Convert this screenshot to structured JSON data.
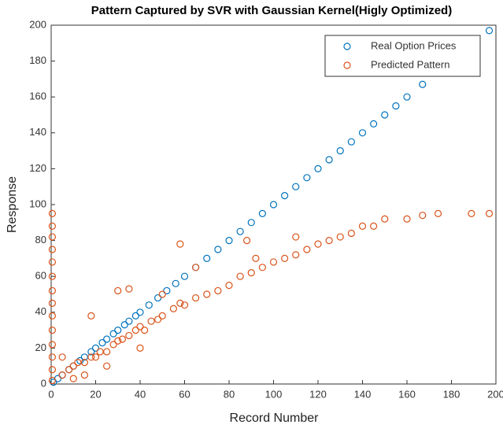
{
  "chart_data": {
    "type": "scatter",
    "title": "Pattern Captured by SVR with Gaussian Kernel(Higly Optimized)",
    "xlabel": "Record Number",
    "ylabel": "Response",
    "xlim": [
      0,
      200
    ],
    "xticks": [
      0,
      20,
      40,
      60,
      80,
      100,
      120,
      140,
      160,
      180,
      200
    ],
    "ylim": [
      0,
      200
    ],
    "yticks": [
      0,
      20,
      40,
      60,
      80,
      100,
      120,
      140,
      160,
      180,
      200
    ],
    "legend": "top-right",
    "series": [
      {
        "name": "Real Option Prices",
        "color": "#0072BD",
        "x": [
          1,
          3,
          5,
          8,
          10,
          13,
          15,
          18,
          20,
          23,
          25,
          28,
          30,
          33,
          35,
          38,
          40,
          44,
          48,
          52,
          56,
          60,
          65,
          70,
          75,
          80,
          85,
          90,
          95,
          100,
          105,
          110,
          115,
          120,
          125,
          130,
          135,
          140,
          145,
          150,
          155,
          160,
          167,
          197
        ],
        "y": [
          1,
          3,
          5,
          8,
          10,
          13,
          15,
          18,
          20,
          23,
          25,
          28,
          30,
          33,
          35,
          38,
          40,
          44,
          48,
          52,
          56,
          60,
          65,
          70,
          75,
          80,
          85,
          90,
          95,
          100,
          105,
          110,
          115,
          120,
          125,
          130,
          135,
          140,
          145,
          150,
          155,
          160,
          167,
          197
        ]
      },
      {
        "name": "Predicted Pattern",
        "color": "#D95319",
        "x": [
          0.5,
          0.5,
          0.5,
          0.5,
          0.5,
          0.5,
          0.5,
          0.5,
          0.5,
          0.5,
          0.5,
          0.5,
          0.5,
          0.5,
          5,
          8,
          10,
          12,
          15,
          18,
          20,
          22,
          25,
          28,
          30,
          32,
          35,
          38,
          40,
          42,
          45,
          48,
          50,
          55,
          58,
          60,
          65,
          70,
          75,
          80,
          85,
          90,
          95,
          100,
          105,
          110,
          115,
          120,
          125,
          130,
          135,
          140,
          145,
          150,
          160,
          167,
          174,
          189,
          197,
          30,
          35,
          18,
          58,
          65,
          110,
          88,
          92,
          25,
          15,
          40,
          50,
          5,
          10
        ],
        "y": [
          2,
          8,
          15,
          22,
          30,
          38,
          45,
          52,
          60,
          68,
          75,
          82,
          88,
          95,
          5,
          8,
          10,
          12,
          12,
          15,
          15,
          18,
          18,
          22,
          24,
          25,
          27,
          30,
          32,
          30,
          35,
          36,
          38,
          42,
          45,
          44,
          48,
          50,
          52,
          55,
          60,
          62,
          65,
          68,
          70,
          72,
          75,
          78,
          80,
          82,
          84,
          88,
          88,
          92,
          92,
          94,
          95,
          95,
          95,
          52,
          53,
          38,
          78,
          65,
          82,
          80,
          70,
          10,
          5,
          20,
          50,
          15,
          3
        ]
      }
    ]
  }
}
